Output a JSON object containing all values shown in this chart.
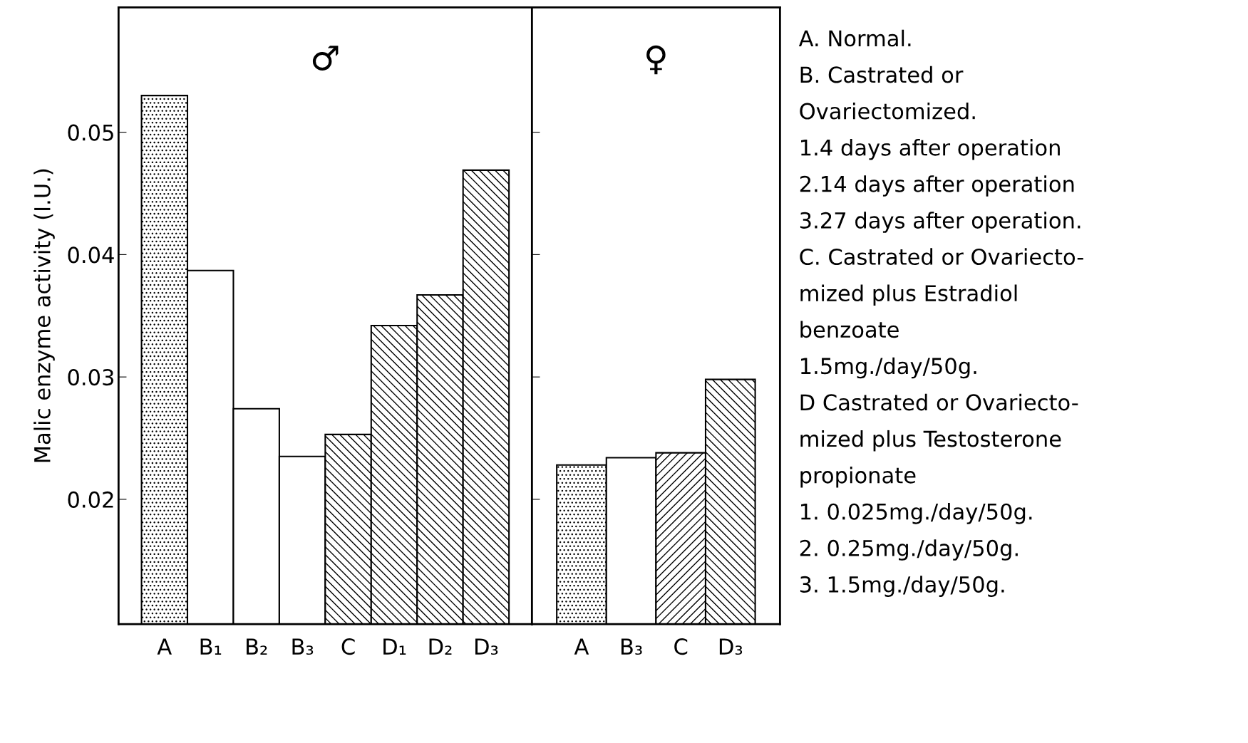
{
  "chart_data": [
    {
      "type": "bar",
      "title": "♂",
      "ylabel": "Malic enzyme activity (I.U.)",
      "categories": [
        "A",
        "B₁",
        "B₂",
        "B₃",
        "C",
        "D₁",
        "D₂",
        "D₃"
      ],
      "series": [
        {
          "color": "#000000",
          "values": [
            0.053,
            null,
            null,
            null,
            null,
            null,
            null,
            null
          ]
        },
        {
          "color": "#ffffff",
          "values": [
            null,
            0.0387,
            0.0274,
            0.0235,
            null,
            null,
            null,
            null
          ]
        },
        {
          "color": "#000000",
          "values": [
            null,
            null,
            null,
            null,
            0.0253,
            0.0342,
            0.0367,
            0.0469
          ]
        }
      ],
      "ylim": [
        0.0098,
        0.0602
      ],
      "yticks": [
        0.02,
        0.03,
        0.04,
        0.05
      ],
      "grid": false,
      "legend": false,
      "annotations": [
        "A. Normal.",
        "B. Castrated or",
        "Ovariectomized.",
        "1.4 days after operation",
        "2.14 days after operation",
        "3.27 days after operation.",
        "C. Castrated or Ovariecto-",
        "mized plus Estradiol",
        "benzoate",
        "1.5mg./day/50g.",
        "D Castrated or Ovariecto-",
        "mized plus Testosterone",
        "propionate",
        "1. 0.025mg./day/50g.",
        "2. 0.25mg./day/50g.",
        "3. 1.5mg./day/50g."
      ]
    },
    {
      "type": "bar",
      "title": "♀",
      "categories": [
        "A",
        "B₃",
        "C",
        "D₃"
      ],
      "series": [
        {
          "color": "#000000",
          "values": [
            0.0228,
            null,
            null,
            null
          ]
        },
        {
          "color": "#ffffff",
          "values": [
            null,
            0.0234,
            null,
            null
          ]
        },
        {
          "color": "#000000",
          "values": [
            null,
            null,
            0.0238,
            0.0298
          ]
        }
      ],
      "ylim": [
        0.0098,
        0.0602
      ],
      "yticks": [
        0.02,
        0.03,
        0.04,
        0.05
      ],
      "tick_labels": "x",
      "grid": false,
      "legend": false
    }
  ]
}
